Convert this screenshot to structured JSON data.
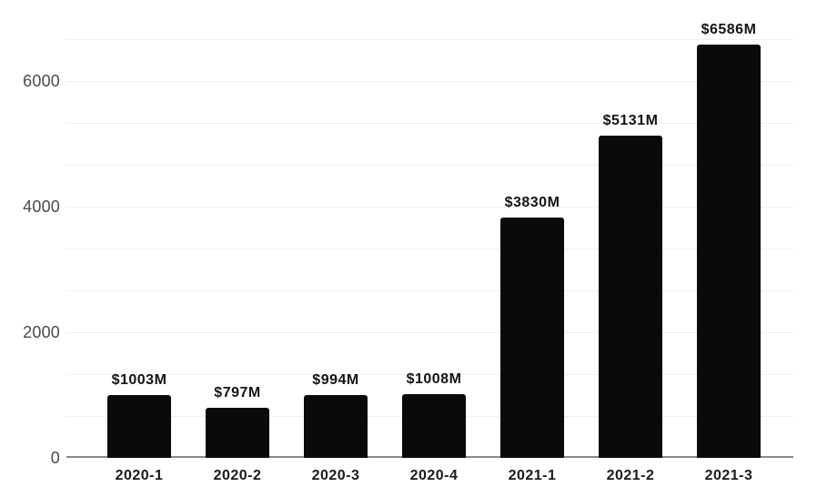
{
  "chart_data": {
    "type": "bar",
    "categories": [
      "2020-1",
      "2020-2",
      "2020-3",
      "2020-4",
      "2021-1",
      "2021-2",
      "2021-3"
    ],
    "values": [
      1003,
      797,
      994,
      1008,
      3830,
      5131,
      6586
    ],
    "bar_labels": [
      "$1003M",
      "$797M",
      "$994M",
      "$1008M",
      "$3830M",
      "$5131M",
      "$6586M"
    ],
    "y_ticks": [
      0,
      2000,
      4000,
      6000
    ],
    "y_tick_labels": [
      "0",
      "2000",
      "4000",
      "6000"
    ],
    "ylim": [
      0,
      6666.67
    ],
    "gridline_step": 666.667,
    "grid": "horizontal-faint",
    "legend": "none",
    "title": "",
    "xlabel": "",
    "ylabel": ""
  },
  "colors": {
    "bar": "#0a0a0a",
    "value_label": "#141414",
    "x_label": "#1a1a1a",
    "y_label": "#4a4a4a",
    "gridline": "#efefef",
    "axis_line": "#8a8a8a",
    "background": "#ffffff"
  }
}
